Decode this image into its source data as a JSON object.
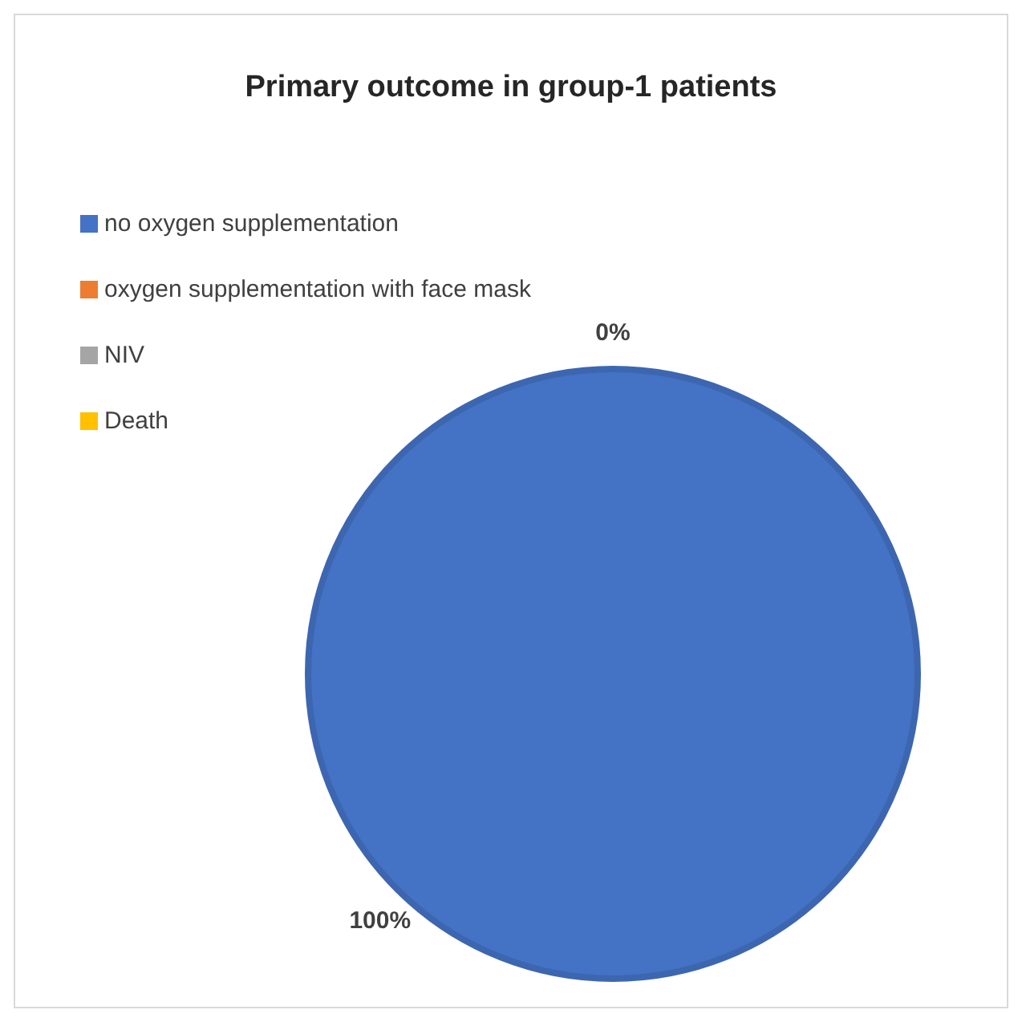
{
  "chart_data": {
    "type": "pie",
    "title": "Primary outcome in group-1 patients",
    "categories": [
      "no oxygen supplementation",
      "oxygen supplementation with face mask",
      "NIV",
      "Death"
    ],
    "values": [
      100,
      0,
      0,
      0
    ],
    "colors": [
      "#4472c4",
      "#ed7d31",
      "#a5a5a5",
      "#ffc000"
    ],
    "value_labels": [
      "100%",
      "0%",
      null,
      null
    ],
    "legend": "top left"
  }
}
